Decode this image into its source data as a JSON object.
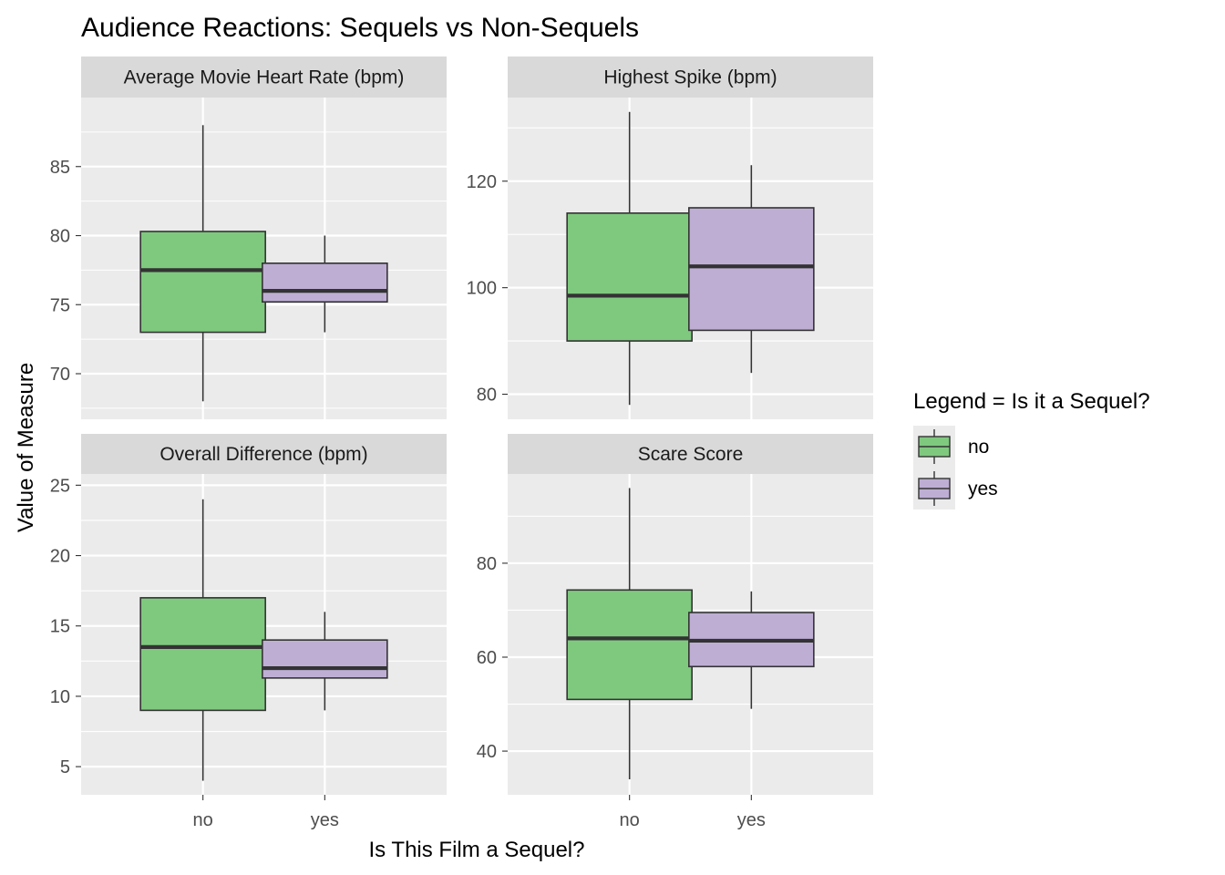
{
  "colors": {
    "no": "#7fc97f",
    "yes": "#beaed4",
    "panel_bg": "#ebebeb",
    "strip_bg": "#d9d9d9",
    "grid": "#ffffff",
    "box_outline": "#333333",
    "tick_text": "#4d4d4d"
  },
  "chart_data": {
    "type": "boxplot",
    "title": "Audience Reactions: Sequels vs Non-Sequels",
    "xlabel": "Is This Film a Sequel?",
    "ylabel": "Value of Measure",
    "categories": [
      "no",
      "yes"
    ],
    "facet_scales": "free_y",
    "grid": true,
    "legend": {
      "title": "Legend = Is it a Sequel?",
      "position": "right",
      "entries": [
        {
          "label": "no",
          "color": "#7fc97f"
        },
        {
          "label": "yes",
          "color": "#beaed4"
        }
      ]
    },
    "panels": [
      {
        "name": "Average Movie Heart Rate (bpm)",
        "ylim": [
          66.7,
          90.0
        ],
        "y_ticks": [
          70,
          75,
          80,
          85
        ],
        "boxes": [
          {
            "category": "no",
            "lower_whisker": 68,
            "q1": 73,
            "median": 77.5,
            "q3": 80.3,
            "upper_whisker": 88
          },
          {
            "category": "yes",
            "lower_whisker": 73,
            "q1": 75.2,
            "median": 76,
            "q3": 78,
            "upper_whisker": 80
          }
        ]
      },
      {
        "name": "Highest Spike (bpm)",
        "ylim": [
          75.3,
          135.7
        ],
        "y_ticks": [
          80,
          100,
          120
        ],
        "boxes": [
          {
            "category": "no",
            "lower_whisker": 78,
            "q1": 90,
            "median": 98.5,
            "q3": 114,
            "upper_whisker": 133
          },
          {
            "category": "yes",
            "lower_whisker": 84,
            "q1": 92,
            "median": 104,
            "q3": 115,
            "upper_whisker": 123
          }
        ]
      },
      {
        "name": "Overall Difference (bpm)",
        "ylim": [
          3.0,
          25.8
        ],
        "y_ticks": [
          5,
          10,
          15,
          20,
          25
        ],
        "boxes": [
          {
            "category": "no",
            "lower_whisker": 4,
            "q1": 9,
            "median": 13.5,
            "q3": 17,
            "upper_whisker": 24
          },
          {
            "category": "yes",
            "lower_whisker": 9,
            "q1": 11.3,
            "median": 12,
            "q3": 14,
            "upper_whisker": 16
          }
        ]
      },
      {
        "name": "Scare Score",
        "ylim": [
          30.7,
          99.0
        ],
        "y_ticks": [
          40,
          60,
          80
        ],
        "boxes": [
          {
            "category": "no",
            "lower_whisker": 34,
            "q1": 51,
            "median": 64,
            "q3": 74.3,
            "upper_whisker": 96
          },
          {
            "category": "yes",
            "lower_whisker": 49,
            "q1": 58,
            "median": 63.5,
            "q3": 69.5,
            "upper_whisker": 74
          }
        ]
      }
    ]
  }
}
